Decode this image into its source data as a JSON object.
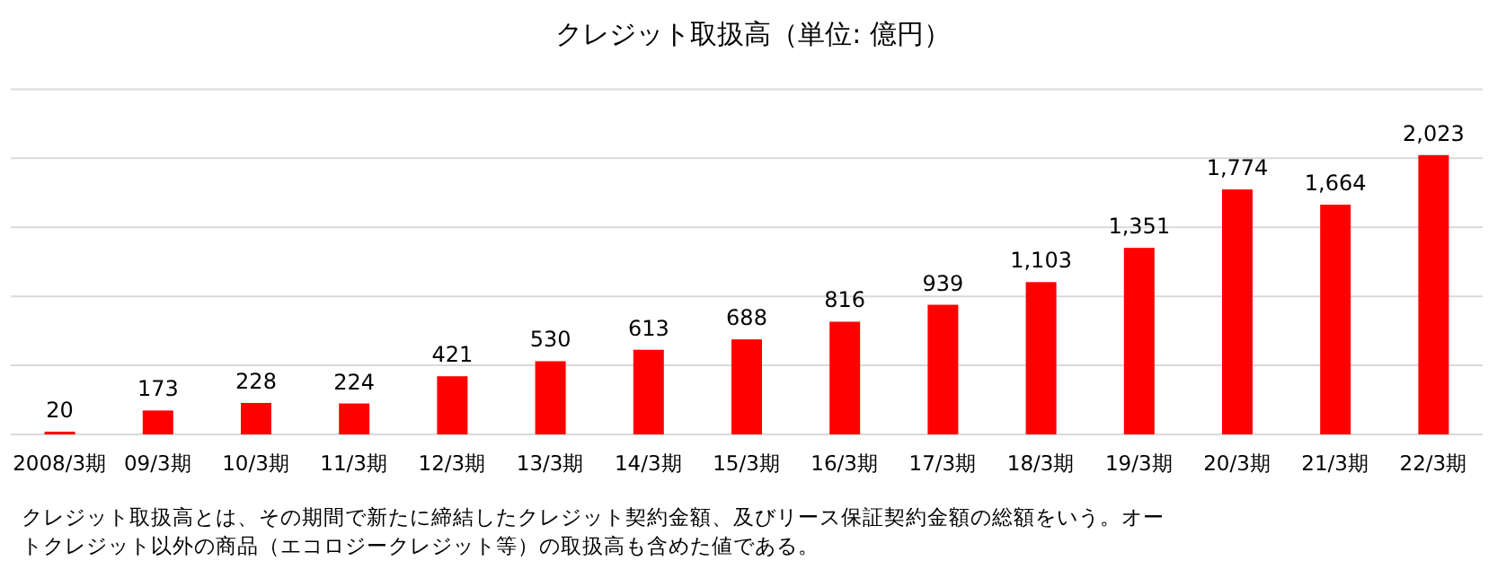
{
  "chart_data": {
    "type": "bar",
    "title": "クレジット取扱高（単位: 億円）",
    "categories": [
      "2008/3期",
      "09/3期",
      "10/3期",
      "11/3期",
      "12/3期",
      "13/3期",
      "14/3期",
      "15/3期",
      "16/3期",
      "17/3期",
      "18/3期",
      "19/3期",
      "20/3期",
      "21/3期",
      "22/3期"
    ],
    "values": [
      20,
      173,
      228,
      224,
      421,
      530,
      613,
      688,
      816,
      939,
      1103,
      1351,
      1774,
      1664,
      2023
    ],
    "value_labels": [
      "20",
      "173",
      "228",
      "224",
      "421",
      "530",
      "613",
      "688",
      "816",
      "939",
      "1,103",
      "1,351",
      "1,774",
      "1,664",
      "2,023"
    ],
    "color": "#ff0000",
    "ylim": [
      0,
      2500
    ],
    "yticks": [
      {
        "value": 0,
        "label": null
      },
      {
        "value": 500,
        "label": null
      },
      {
        "value": 1000,
        "label": null
      },
      {
        "value": 1500,
        "label": null
      },
      {
        "value": 2000,
        "label": null
      },
      {
        "value": 2500,
        "label": null
      }
    ],
    "grid": "y",
    "tick_labels": "x",
    "annotations": [
      "クレジット取扱高とは、その期間で新たに締結したクレジット契約金額、及びリース保証契約金額の総額をいう。オートクレジット以外の商品（エコロジークレジット等）の取扱高も含めた値である。"
    ]
  }
}
